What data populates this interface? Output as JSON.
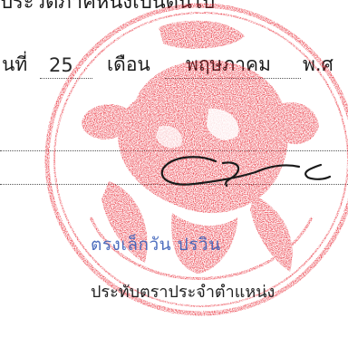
{
  "header_text": "ประวัติภาคหนึ่งเป็นต้นไป",
  "date": {
    "day_label": "นที่",
    "day_value": "25",
    "month_label": "เดือน",
    "month_value": "พฤษภาคม",
    "year_label": "พ.ศ"
  },
  "signer_name": "ตรงเล็กวัน ปรวิน",
  "signer_position": "ประทับตราประจำตำแหน่ง",
  "colors": {
    "seal_red": "#e8232f",
    "ink_blue": "#3a5fb8",
    "signature_ink": "#1a1a1a"
  },
  "seal_icon": "garuda-seal-icon"
}
